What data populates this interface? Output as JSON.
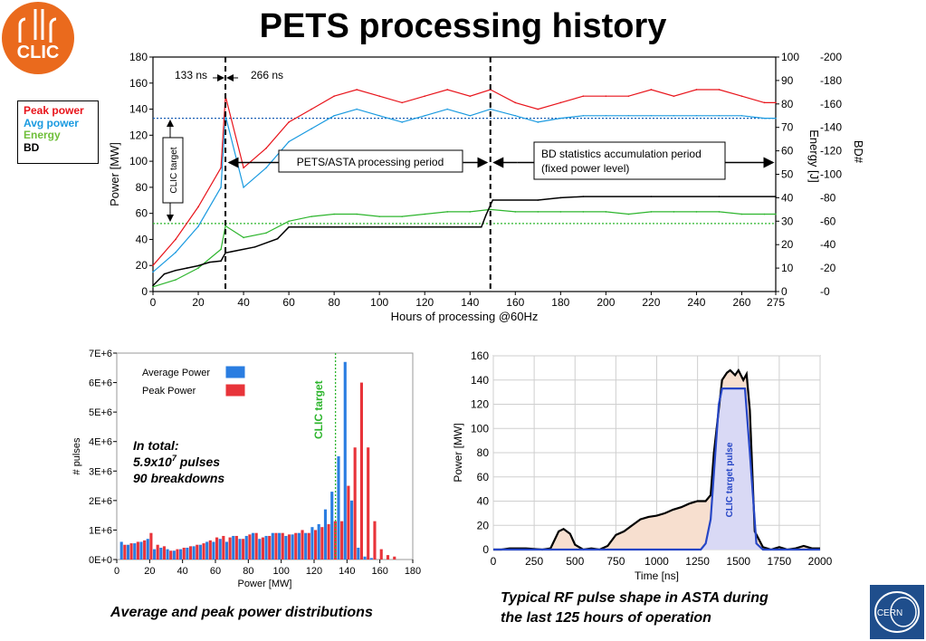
{
  "page": {
    "title": "PETS processing history",
    "caption_hist": "Average and peak  power distributions",
    "caption_pulse_line1": "Typical RF pulse shape in ASTA during",
    "caption_pulse_line2": "the last 125 hours of operation",
    "logo_text": "CLIC",
    "cern_text": "CERN"
  },
  "legend_main": [
    {
      "label": "Peak power",
      "color": "#e8141b"
    },
    {
      "label": "Avg power",
      "color": "#1a9ae0"
    },
    {
      "label": "Energy",
      "color": "#6fbf3a"
    },
    {
      "label": "BD",
      "color": "#000000"
    }
  ],
  "annotations": {
    "ns133": "133 ns",
    "ns266": "266 ns",
    "clic_target": "CLIC target",
    "pets_period": "PETS/ASTA processing period",
    "bd_period_1": "BD statistics accumulation period",
    "bd_period_2": "(fixed power level)",
    "hist_total_1": "In total:",
    "hist_total_2": "5.9x10",
    "hist_total_2_sup": "7",
    "hist_total_2_end": " pulses",
    "hist_total_3": "90 breakdowns",
    "hist_clic_target": "CLIC target",
    "pulse_clic_target": "CLIC target pulse"
  },
  "chart_data": [
    {
      "type": "line",
      "title": "PETS processing history",
      "xlabel": "Hours of processing @60Hz",
      "ylabel": "Power [MW]",
      "y2label": "Energy [J]",
      "y3label": "BD#",
      "xlim": [
        0,
        275
      ],
      "ylim": [
        0,
        180
      ],
      "y2lim": [
        0,
        100
      ],
      "y3lim": [
        0,
        200
      ],
      "x_ticks": [
        0,
        20,
        40,
        60,
        80,
        100,
        120,
        140,
        160,
        180,
        200,
        220,
        240,
        260,
        275
      ],
      "y_ticks": [
        0,
        20,
        40,
        60,
        80,
        100,
        120,
        140,
        160,
        180
      ],
      "y2_ticks": [
        0,
        10,
        20,
        30,
        40,
        50,
        60,
        70,
        80,
        90,
        100
      ],
      "y3_ticks": [
        "-0",
        "-20",
        "-40",
        "-60",
        "-80",
        "-100",
        "-120",
        "-140",
        "-160",
        "-180",
        "-200"
      ],
      "reference_lines": {
        "target_power": 133,
        "target_energy": 29,
        "phase_change_hours": [
          32,
          149
        ]
      },
      "series": [
        {
          "name": "Peak power",
          "color": "#e8141b",
          "x": [
            0,
            10,
            20,
            30,
            32,
            40,
            50,
            60,
            70,
            80,
            90,
            100,
            110,
            120,
            130,
            140,
            149,
            160,
            170,
            180,
            190,
            200,
            210,
            220,
            230,
            240,
            250,
            260,
            270,
            275
          ],
          "y": [
            20,
            40,
            65,
            95,
            150,
            95,
            110,
            130,
            140,
            150,
            155,
            150,
            145,
            150,
            155,
            150,
            155,
            145,
            140,
            145,
            150,
            150,
            150,
            155,
            150,
            155,
            155,
            150,
            145,
            145
          ]
        },
        {
          "name": "Avg power",
          "color": "#1a9ae0",
          "x": [
            0,
            10,
            20,
            30,
            32,
            40,
            50,
            60,
            70,
            80,
            90,
            100,
            110,
            120,
            130,
            140,
            149,
            160,
            170,
            180,
            190,
            200,
            210,
            220,
            230,
            240,
            250,
            260,
            270,
            275
          ],
          "y": [
            15,
            30,
            50,
            80,
            135,
            80,
            95,
            115,
            125,
            135,
            140,
            135,
            130,
            135,
            140,
            135,
            140,
            135,
            130,
            133,
            135,
            135,
            135,
            135,
            135,
            135,
            135,
            135,
            133,
            133
          ]
        },
        {
          "name": "Energy",
          "color": "#2db52d",
          "x": [
            0,
            10,
            20,
            30,
            32,
            40,
            50,
            60,
            70,
            80,
            90,
            100,
            110,
            120,
            130,
            140,
            149,
            160,
            170,
            180,
            190,
            200,
            210,
            220,
            230,
            240,
            250,
            260,
            270,
            275
          ],
          "y": [
            2,
            5,
            10,
            18,
            28,
            23,
            25,
            30,
            32,
            33,
            33,
            32,
            32,
            33,
            34,
            34,
            35,
            34,
            34,
            34,
            34,
            34,
            33,
            34,
            34,
            34,
            34,
            33,
            33,
            33
          ]
        },
        {
          "name": "BD",
          "color": "#000000",
          "x": [
            0,
            5,
            10,
            15,
            20,
            25,
            30,
            32,
            45,
            55,
            60,
            80,
            100,
            120,
            145,
            147,
            150,
            170,
            180,
            190,
            220,
            250,
            275
          ],
          "y": [
            5,
            15,
            18,
            20,
            22,
            25,
            26,
            33,
            38,
            45,
            55,
            55,
            55,
            55,
            55,
            65,
            78,
            78,
            80,
            81,
            81,
            81,
            81
          ]
        }
      ]
    },
    {
      "type": "bar",
      "title": "",
      "xlabel": "Power [MW]",
      "ylabel": "# pulses",
      "xlim": [
        0,
        180
      ],
      "ylim": [
        0,
        7000000
      ],
      "x_ticks": [
        0,
        20,
        40,
        60,
        80,
        100,
        120,
        140,
        160,
        180
      ],
      "y_ticks": [
        "0E+0",
        "1E+6",
        "2E+6",
        "3E+6",
        "4E+6",
        "5E+6",
        "6E+6",
        "7E+6"
      ],
      "reference_x": 133,
      "bin_width": 4,
      "categories": [
        4,
        8,
        12,
        16,
        20,
        24,
        28,
        32,
        36,
        40,
        44,
        48,
        52,
        56,
        60,
        64,
        68,
        72,
        76,
        80,
        84,
        88,
        92,
        96,
        100,
        104,
        108,
        112,
        116,
        120,
        124,
        128,
        132,
        136,
        140,
        144,
        148,
        152,
        156,
        160,
        164,
        168
      ],
      "series": [
        {
          "name": "Average Power",
          "color": "#2a7de1",
          "values": [
            600000,
            500000,
            550000,
            600000,
            700000,
            350000,
            400000,
            350000,
            300000,
            350000,
            400000,
            450000,
            500000,
            600000,
            600000,
            700000,
            600000,
            800000,
            700000,
            800000,
            900000,
            700000,
            800000,
            900000,
            900000,
            800000,
            850000,
            900000,
            900000,
            1100000,
            1200000,
            1700000,
            2300000,
            3500000,
            6700000,
            2000000,
            400000,
            100000,
            50000,
            0,
            0,
            0
          ]
        },
        {
          "name": "Peak Power",
          "color": "#e8343a",
          "values": [
            500000,
            550000,
            600000,
            650000,
            900000,
            500000,
            450000,
            300000,
            350000,
            400000,
            450000,
            500000,
            550000,
            650000,
            750000,
            800000,
            750000,
            800000,
            700000,
            850000,
            900000,
            750000,
            800000,
            900000,
            900000,
            850000,
            900000,
            1000000,
            900000,
            1000000,
            1100000,
            1200000,
            1300000,
            1300000,
            2500000,
            3800000,
            6000000,
            3800000,
            1300000,
            350000,
            150000,
            100000
          ]
        }
      ]
    },
    {
      "type": "line",
      "title": "",
      "xlabel": "Time [ns]",
      "ylabel": "Power [MW]",
      "xlim": [
        0,
        2000
      ],
      "ylim": [
        0,
        160
      ],
      "x_ticks": [
        0,
        250,
        500,
        750,
        1000,
        1250,
        1500,
        1750,
        2000
      ],
      "y_ticks": [
        0,
        20,
        40,
        60,
        80,
        100,
        120,
        140,
        160
      ],
      "series": [
        {
          "name": "RF pulse",
          "color": "#000000",
          "x": [
            0,
            50,
            100,
            200,
            300,
            350,
            400,
            430,
            470,
            500,
            550,
            600,
            650,
            700,
            750,
            800,
            850,
            900,
            950,
            1000,
            1050,
            1100,
            1150,
            1200,
            1250,
            1300,
            1330,
            1350,
            1400,
            1430,
            1450,
            1480,
            1500,
            1530,
            1550,
            1570,
            1600,
            1650,
            1700,
            1750,
            1800,
            1850,
            1900,
            1950,
            2000
          ],
          "y": [
            0,
            0,
            1,
            1,
            0,
            1,
            15,
            17,
            13,
            4,
            0,
            1,
            0,
            3,
            12,
            15,
            20,
            25,
            27,
            28,
            30,
            33,
            35,
            38,
            40,
            40,
            45,
            80,
            140,
            146,
            148,
            144,
            148,
            140,
            145,
            115,
            15,
            2,
            0,
            2,
            0,
            1,
            3,
            1,
            1
          ]
        },
        {
          "name": "CLIC target pulse",
          "color": "#2646c6",
          "x": [
            0,
            1270,
            1300,
            1330,
            1380,
            1400,
            1540,
            1570,
            1610,
            1650,
            2000
          ],
          "y": [
            0,
            0,
            5,
            25,
            120,
            133,
            133,
            80,
            5,
            0,
            0
          ]
        }
      ]
    }
  ]
}
